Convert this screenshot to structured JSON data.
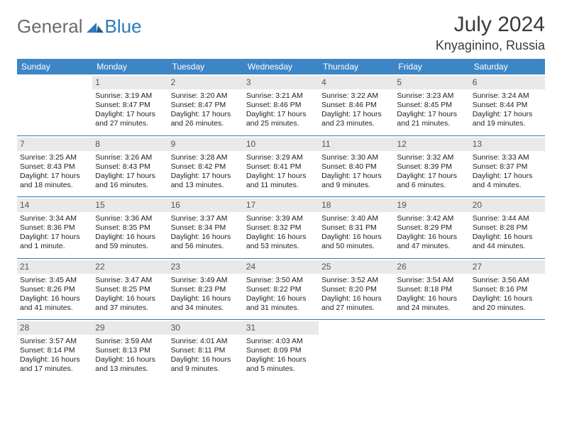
{
  "brand": {
    "word1": "General",
    "word2": "Blue"
  },
  "title": {
    "month": "July 2024",
    "location": "Knyaginino, Russia"
  },
  "colors": {
    "header_bg": "#3d86c6",
    "header_text": "#ffffff",
    "daynum_bg": "#e9e9e9",
    "rule": "#2f78bb",
    "brand_gray": "#6b6b6b",
    "brand_blue": "#2f78bb"
  },
  "weekdays": [
    "Sunday",
    "Monday",
    "Tuesday",
    "Wednesday",
    "Thursday",
    "Friday",
    "Saturday"
  ],
  "weeks": [
    [
      null,
      {
        "n": "1",
        "sr": "Sunrise: 3:19 AM",
        "ss": "Sunset: 8:47 PM",
        "d1": "Daylight: 17 hours",
        "d2": "and 27 minutes."
      },
      {
        "n": "2",
        "sr": "Sunrise: 3:20 AM",
        "ss": "Sunset: 8:47 PM",
        "d1": "Daylight: 17 hours",
        "d2": "and 26 minutes."
      },
      {
        "n": "3",
        "sr": "Sunrise: 3:21 AM",
        "ss": "Sunset: 8:46 PM",
        "d1": "Daylight: 17 hours",
        "d2": "and 25 minutes."
      },
      {
        "n": "4",
        "sr": "Sunrise: 3:22 AM",
        "ss": "Sunset: 8:46 PM",
        "d1": "Daylight: 17 hours",
        "d2": "and 23 minutes."
      },
      {
        "n": "5",
        "sr": "Sunrise: 3:23 AM",
        "ss": "Sunset: 8:45 PM",
        "d1": "Daylight: 17 hours",
        "d2": "and 21 minutes."
      },
      {
        "n": "6",
        "sr": "Sunrise: 3:24 AM",
        "ss": "Sunset: 8:44 PM",
        "d1": "Daylight: 17 hours",
        "d2": "and 19 minutes."
      }
    ],
    [
      {
        "n": "7",
        "sr": "Sunrise: 3:25 AM",
        "ss": "Sunset: 8:43 PM",
        "d1": "Daylight: 17 hours",
        "d2": "and 18 minutes."
      },
      {
        "n": "8",
        "sr": "Sunrise: 3:26 AM",
        "ss": "Sunset: 8:43 PM",
        "d1": "Daylight: 17 hours",
        "d2": "and 16 minutes."
      },
      {
        "n": "9",
        "sr": "Sunrise: 3:28 AM",
        "ss": "Sunset: 8:42 PM",
        "d1": "Daylight: 17 hours",
        "d2": "and 13 minutes."
      },
      {
        "n": "10",
        "sr": "Sunrise: 3:29 AM",
        "ss": "Sunset: 8:41 PM",
        "d1": "Daylight: 17 hours",
        "d2": "and 11 minutes."
      },
      {
        "n": "11",
        "sr": "Sunrise: 3:30 AM",
        "ss": "Sunset: 8:40 PM",
        "d1": "Daylight: 17 hours",
        "d2": "and 9 minutes."
      },
      {
        "n": "12",
        "sr": "Sunrise: 3:32 AM",
        "ss": "Sunset: 8:39 PM",
        "d1": "Daylight: 17 hours",
        "d2": "and 6 minutes."
      },
      {
        "n": "13",
        "sr": "Sunrise: 3:33 AM",
        "ss": "Sunset: 8:37 PM",
        "d1": "Daylight: 17 hours",
        "d2": "and 4 minutes."
      }
    ],
    [
      {
        "n": "14",
        "sr": "Sunrise: 3:34 AM",
        "ss": "Sunset: 8:36 PM",
        "d1": "Daylight: 17 hours",
        "d2": "and 1 minute."
      },
      {
        "n": "15",
        "sr": "Sunrise: 3:36 AM",
        "ss": "Sunset: 8:35 PM",
        "d1": "Daylight: 16 hours",
        "d2": "and 59 minutes."
      },
      {
        "n": "16",
        "sr": "Sunrise: 3:37 AM",
        "ss": "Sunset: 8:34 PM",
        "d1": "Daylight: 16 hours",
        "d2": "and 56 minutes."
      },
      {
        "n": "17",
        "sr": "Sunrise: 3:39 AM",
        "ss": "Sunset: 8:32 PM",
        "d1": "Daylight: 16 hours",
        "d2": "and 53 minutes."
      },
      {
        "n": "18",
        "sr": "Sunrise: 3:40 AM",
        "ss": "Sunset: 8:31 PM",
        "d1": "Daylight: 16 hours",
        "d2": "and 50 minutes."
      },
      {
        "n": "19",
        "sr": "Sunrise: 3:42 AM",
        "ss": "Sunset: 8:29 PM",
        "d1": "Daylight: 16 hours",
        "d2": "and 47 minutes."
      },
      {
        "n": "20",
        "sr": "Sunrise: 3:44 AM",
        "ss": "Sunset: 8:28 PM",
        "d1": "Daylight: 16 hours",
        "d2": "and 44 minutes."
      }
    ],
    [
      {
        "n": "21",
        "sr": "Sunrise: 3:45 AM",
        "ss": "Sunset: 8:26 PM",
        "d1": "Daylight: 16 hours",
        "d2": "and 41 minutes."
      },
      {
        "n": "22",
        "sr": "Sunrise: 3:47 AM",
        "ss": "Sunset: 8:25 PM",
        "d1": "Daylight: 16 hours",
        "d2": "and 37 minutes."
      },
      {
        "n": "23",
        "sr": "Sunrise: 3:49 AM",
        "ss": "Sunset: 8:23 PM",
        "d1": "Daylight: 16 hours",
        "d2": "and 34 minutes."
      },
      {
        "n": "24",
        "sr": "Sunrise: 3:50 AM",
        "ss": "Sunset: 8:22 PM",
        "d1": "Daylight: 16 hours",
        "d2": "and 31 minutes."
      },
      {
        "n": "25",
        "sr": "Sunrise: 3:52 AM",
        "ss": "Sunset: 8:20 PM",
        "d1": "Daylight: 16 hours",
        "d2": "and 27 minutes."
      },
      {
        "n": "26",
        "sr": "Sunrise: 3:54 AM",
        "ss": "Sunset: 8:18 PM",
        "d1": "Daylight: 16 hours",
        "d2": "and 24 minutes."
      },
      {
        "n": "27",
        "sr": "Sunrise: 3:56 AM",
        "ss": "Sunset: 8:16 PM",
        "d1": "Daylight: 16 hours",
        "d2": "and 20 minutes."
      }
    ],
    [
      {
        "n": "28",
        "sr": "Sunrise: 3:57 AM",
        "ss": "Sunset: 8:14 PM",
        "d1": "Daylight: 16 hours",
        "d2": "and 17 minutes."
      },
      {
        "n": "29",
        "sr": "Sunrise: 3:59 AM",
        "ss": "Sunset: 8:13 PM",
        "d1": "Daylight: 16 hours",
        "d2": "and 13 minutes."
      },
      {
        "n": "30",
        "sr": "Sunrise: 4:01 AM",
        "ss": "Sunset: 8:11 PM",
        "d1": "Daylight: 16 hours",
        "d2": "and 9 minutes."
      },
      {
        "n": "31",
        "sr": "Sunrise: 4:03 AM",
        "ss": "Sunset: 8:09 PM",
        "d1": "Daylight: 16 hours",
        "d2": "and 5 minutes."
      },
      null,
      null,
      null
    ]
  ]
}
